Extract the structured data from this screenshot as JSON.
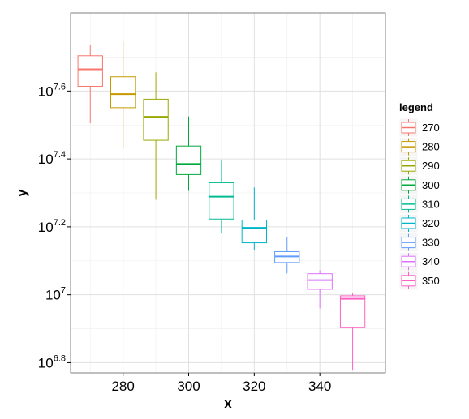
{
  "chart_data": {
    "type": "boxplot",
    "xlabel": "x",
    "ylabel": "y",
    "x_ticks": [
      280,
      300,
      320,
      340
    ],
    "y_ticks": [
      {
        "value": 6.8,
        "label_base": "10",
        "label_exp": "6.8"
      },
      {
        "value": 7.0,
        "label_base": "10",
        "label_exp": "7"
      },
      {
        "value": 7.2,
        "label_base": "10",
        "label_exp": "7.2"
      },
      {
        "value": 7.4,
        "label_base": "10",
        "label_exp": "7.4"
      },
      {
        "value": 7.6,
        "label_base": "10",
        "label_exp": "7.6"
      }
    ],
    "y_scale": "log10",
    "xlim": [
      264,
      360
    ],
    "ylim": [
      6.77,
      7.83
    ],
    "grid": true,
    "legend_title": "legend",
    "legend_position": "right",
    "series": [
      {
        "name": "270",
        "x": 270,
        "color": "#F8766D",
        "whisker_low": 7.505,
        "q1": 7.614,
        "median": 7.664,
        "q3": 7.704,
        "whisker_high": 7.737
      },
      {
        "name": "280",
        "x": 280,
        "color": "#C49A00",
        "whisker_low": 7.432,
        "q1": 7.551,
        "median": 7.591,
        "q3": 7.642,
        "whisker_high": 7.745
      },
      {
        "name": "290",
        "x": 290,
        "color": "#99A800",
        "whisker_low": 7.28,
        "q1": 7.455,
        "median": 7.524,
        "q3": 7.576,
        "whisker_high": 7.655
      },
      {
        "name": "300",
        "x": 300,
        "color": "#00A83C",
        "whisker_low": 7.306,
        "q1": 7.354,
        "median": 7.385,
        "q3": 7.438,
        "whisker_high": 7.525
      },
      {
        "name": "310",
        "x": 310,
        "color": "#00BC92",
        "whisker_low": 7.182,
        "q1": 7.223,
        "median": 7.289,
        "q3": 7.33,
        "whisker_high": 7.395
      },
      {
        "name": "320",
        "x": 320,
        "color": "#00B5C9",
        "whisker_low": 7.132,
        "q1": 7.153,
        "median": 7.197,
        "q3": 7.22,
        "whisker_high": 7.316
      },
      {
        "name": "330",
        "x": 330,
        "color": "#619CFF",
        "whisker_low": 7.063,
        "q1": 7.095,
        "median": 7.113,
        "q3": 7.127,
        "whisker_high": 7.171
      },
      {
        "name": "340",
        "x": 340,
        "color": "#DB72FB",
        "whisker_low": 6.96,
        "q1": 7.016,
        "median": 7.043,
        "q3": 7.062,
        "whisker_high": 7.072
      },
      {
        "name": "350",
        "x": 350,
        "color": "#FF61C3",
        "whisker_low": 6.777,
        "q1": 6.903,
        "median": 6.988,
        "q3": 6.997,
        "whisker_high": 7.004
      }
    ]
  }
}
